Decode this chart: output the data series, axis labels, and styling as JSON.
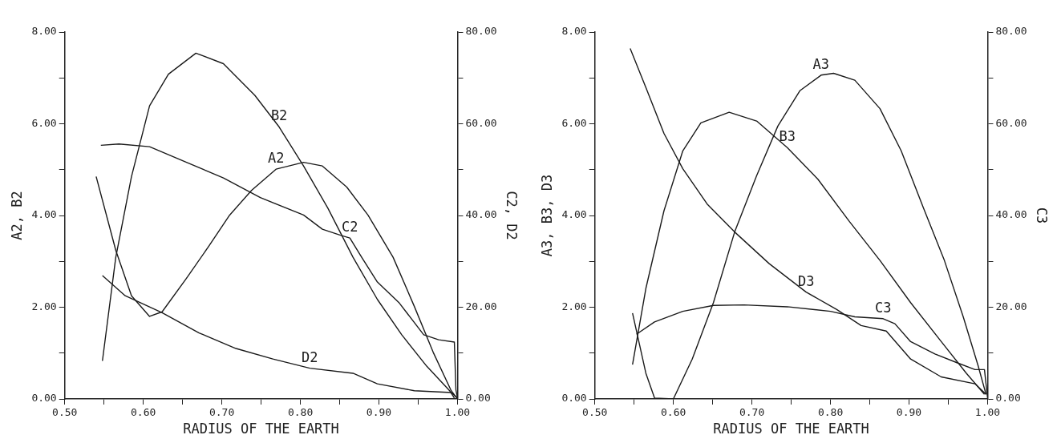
{
  "chart_data": [
    {
      "type": "line",
      "xlabel": "RADIUS OF THE EARTH",
      "ylabel": "A2, B2",
      "y2label": "C2, D2",
      "legend": false,
      "grid": false,
      "marker": "none",
      "line_style": "solid",
      "xlim": [
        0.5,
        1.0
      ],
      "xticks": [
        {
          "value": 0.5,
          "label": "0.50"
        },
        {
          "value": 0.55,
          "label": null
        },
        {
          "value": 0.6,
          "label": "0.60"
        },
        {
          "value": 0.65,
          "label": null
        },
        {
          "value": 0.7,
          "label": "0.70"
        },
        {
          "value": 0.75,
          "label": null
        },
        {
          "value": 0.8,
          "label": "0.80"
        },
        {
          "value": 0.85,
          "label": null
        },
        {
          "value": 0.9,
          "label": "0.90"
        },
        {
          "value": 0.95,
          "label": null
        },
        {
          "value": 1.0,
          "label": "1.00"
        }
      ],
      "ylim": [
        0,
        8
      ],
      "yticks": [
        {
          "value": 0,
          "label": "0.00"
        },
        {
          "value": 1,
          "label": null
        },
        {
          "value": 2,
          "label": "2.00"
        },
        {
          "value": 3,
          "label": null
        },
        {
          "value": 4,
          "label": "4.00"
        },
        {
          "value": 5,
          "label": null
        },
        {
          "value": 6,
          "label": "6.00"
        },
        {
          "value": 7,
          "label": null
        },
        {
          "value": 8,
          "label": "8.00"
        }
      ],
      "y2lim": [
        0,
        80
      ],
      "y2ticks": [
        {
          "value": 0,
          "label": "0.00"
        },
        {
          "value": 10,
          "label": null
        },
        {
          "value": 20,
          "label": "20.00"
        },
        {
          "value": 30,
          "label": null
        },
        {
          "value": 40,
          "label": "40.00"
        },
        {
          "value": 50,
          "label": null
        },
        {
          "value": 60,
          "label": "60.00"
        },
        {
          "value": 70,
          "label": null
        },
        {
          "value": 80,
          "label": "80.00"
        }
      ],
      "series": [
        {
          "name": "A2",
          "color": "#1a1a1a",
          "x": [
            0.54,
            0.565,
            0.585,
            0.608,
            0.624,
            0.655,
            0.683,
            0.71,
            0.738,
            0.769,
            0.804,
            0.828,
            0.859,
            0.886,
            0.918,
            0.945,
            0.969,
            0.992,
            1.0
          ],
          "values": [
            4.85,
            3.24,
            2.25,
            1.8,
            1.9,
            2.63,
            3.32,
            4.01,
            4.55,
            5.01,
            5.16,
            5.08,
            4.62,
            4.01,
            3.09,
            2.02,
            1.02,
            0.18,
            0
          ]
        },
        {
          "name": "B2",
          "color": "#1a1a1a",
          "x": [
            0.548,
            0.565,
            0.585,
            0.608,
            0.632,
            0.667,
            0.702,
            0.742,
            0.773,
            0.804,
            0.835,
            0.867,
            0.898,
            0.929,
            0.961,
            0.99,
            0.996
          ],
          "values": [
            0.83,
            3.09,
            4.85,
            6.39,
            7.08,
            7.54,
            7.31,
            6.62,
            5.93,
            5.08,
            4.16,
            3.09,
            2.17,
            1.4,
            0.71,
            0.18,
            0.02
          ]
        },
        {
          "name": "C2",
          "color": "#1a1a1a",
          "axis": "y2",
          "x": [
            0.546,
            0.569,
            0.608,
            0.655,
            0.702,
            0.749,
            0.804,
            0.828,
            0.851,
            0.863,
            0.878,
            0.898,
            0.926,
            0.957,
            0.976,
            0.996,
            0.998,
            1.0
          ],
          "values": [
            55.3,
            55.6,
            55,
            51.6,
            48.2,
            43.9,
            40.1,
            37,
            35.7,
            35.1,
            30.9,
            25.5,
            20.9,
            14,
            12.9,
            12.4,
            2,
            0.2
          ]
        },
        {
          "name": "D2",
          "color": "#1a1a1a",
          "axis": "y2",
          "x": [
            0.548,
            0.577,
            0.624,
            0.671,
            0.718,
            0.765,
            0.812,
            0.867,
            0.898,
            0.945,
            0.992,
            1.0
          ],
          "values": [
            26.9,
            22.5,
            18.8,
            14.4,
            11,
            8.7,
            6.7,
            5.6,
            3.3,
            1.8,
            1.4,
            0.2
          ]
        }
      ]
    },
    {
      "type": "line",
      "xlabel": "RADIUS OF THE EARTH",
      "ylabel": "A3, B3, D3",
      "y2label": "C3",
      "legend": false,
      "grid": false,
      "marker": "none",
      "line_style": "solid",
      "xlim": [
        0.5,
        1.0
      ],
      "xticks": [
        {
          "value": 0.5,
          "label": "0.50"
        },
        {
          "value": 0.55,
          "label": null
        },
        {
          "value": 0.6,
          "label": "0.60"
        },
        {
          "value": 0.65,
          "label": null
        },
        {
          "value": 0.7,
          "label": "0.70"
        },
        {
          "value": 0.75,
          "label": null
        },
        {
          "value": 0.8,
          "label": "0.80"
        },
        {
          "value": 0.85,
          "label": null
        },
        {
          "value": 0.9,
          "label": "0.90"
        },
        {
          "value": 0.95,
          "label": null
        },
        {
          "value": 1.0,
          "label": "1.00"
        }
      ],
      "ylim": [
        0,
        8
      ],
      "yticks": [
        {
          "value": 0,
          "label": "0.00"
        },
        {
          "value": 1,
          "label": null
        },
        {
          "value": 2,
          "label": "2.00"
        },
        {
          "value": 3,
          "label": null
        },
        {
          "value": 4,
          "label": "4.00"
        },
        {
          "value": 5,
          "label": null
        },
        {
          "value": 6,
          "label": "6.00"
        },
        {
          "value": 7,
          "label": null
        },
        {
          "value": 8,
          "label": "8.00"
        }
      ],
      "y2lim": [
        0,
        80
      ],
      "y2ticks": [
        {
          "value": 0,
          "label": "0.00"
        },
        {
          "value": 10,
          "label": null
        },
        {
          "value": 20,
          "label": "20.00"
        },
        {
          "value": 30,
          "label": null
        },
        {
          "value": 40,
          "label": "40.00"
        },
        {
          "value": 50,
          "label": null
        },
        {
          "value": 60,
          "label": "60.00"
        },
        {
          "value": 70,
          "label": null
        },
        {
          "value": 80,
          "label": "80.00"
        }
      ],
      "series": [
        {
          "name": "A3",
          "color": "#1a1a1a",
          "x": [
            0.548,
            0.565,
            0.576,
            0.6,
            0.624,
            0.651,
            0.678,
            0.706,
            0.733,
            0.761,
            0.788,
            0.804,
            0.831,
            0.863,
            0.89,
            0.918,
            0.945,
            0.969,
            0.988,
            0.998
          ],
          "values": [
            1.87,
            0.56,
            0.02,
            0,
            0.87,
            2.1,
            3.64,
            4.87,
            5.95,
            6.72,
            7.06,
            7.1,
            6.95,
            6.33,
            5.41,
            4.18,
            3.02,
            1.79,
            0.72,
            0.1
          ]
        },
        {
          "name": "B3",
          "color": "#1a1a1a",
          "x": [
            0.548,
            0.565,
            0.588,
            0.612,
            0.635,
            0.671,
            0.706,
            0.745,
            0.784,
            0.824,
            0.863,
            0.902,
            0.941,
            0.973,
            0.996
          ],
          "values": [
            0.75,
            2.41,
            4.1,
            5.41,
            6.02,
            6.25,
            6.06,
            5.48,
            4.79,
            3.87,
            3.02,
            2.1,
            1.25,
            0.56,
            0.1
          ]
        },
        {
          "name": "C3",
          "color": "#1a1a1a",
          "axis": "y2",
          "x": [
            0.553,
            0.576,
            0.612,
            0.651,
            0.69,
            0.745,
            0.8,
            0.831,
            0.867,
            0.882,
            0.902,
            0.933,
            0.961,
            0.984,
            0.996,
            0.998,
            1.0
          ],
          "values": [
            14.1,
            16.8,
            19.1,
            20.4,
            20.5,
            20.1,
            19.1,
            17.9,
            17.5,
            16.4,
            12.5,
            9.8,
            7.9,
            6.4,
            6.4,
            3.3,
            0.2
          ]
        },
        {
          "name": "D3",
          "color": "#1a1a1a",
          "x": [
            0.545,
            0.565,
            0.588,
            0.612,
            0.643,
            0.678,
            0.722,
            0.769,
            0.808,
            0.839,
            0.871,
            0.902,
            0.941,
            0.984,
            0.998
          ],
          "values": [
            7.64,
            6.79,
            5.79,
            5.02,
            4.25,
            3.64,
            2.95,
            2.33,
            1.95,
            1.6,
            1.48,
            0.87,
            0.48,
            0.33,
            0.1
          ]
        }
      ]
    }
  ]
}
